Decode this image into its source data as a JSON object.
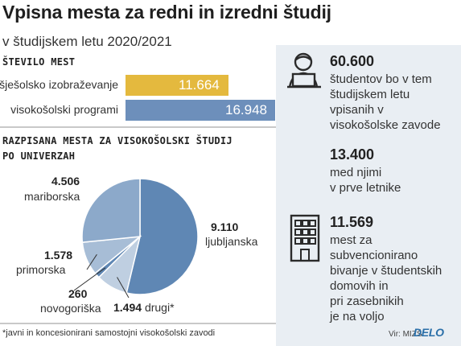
{
  "header": {
    "title": "Vpisna mesta za redni in izredni študij",
    "subtitle": "v študijskem letu 2020/2021"
  },
  "colors": {
    "bar_visjesolsko": "#e4b93e",
    "bar_visokosolski": "#6d8fbb",
    "pie_ljubljanska": "#5f87b4",
    "pie_mariborska": "#8ca9ca",
    "pie_primorska": "#a7bdd6",
    "pie_novogoriska": "#5f87b4",
    "pie_drugi": "#bfcfe1",
    "side_panel": "#e9eef3"
  },
  "chart_data": [
    {
      "type": "bar",
      "title": "ŠTEVILO MEST",
      "categories": [
        "višješolsko izobraževanje",
        "visokošolski programi"
      ],
      "values": [
        11664,
        16948
      ],
      "value_labels": [
        "11.664",
        "16.948"
      ],
      "xlim": [
        0,
        16948
      ]
    },
    {
      "type": "pie",
      "title": "RAZPISANA MESTA ZA VISOKOŠOLSKI ŠTUDIJ PO UNIVERZAH",
      "slices": [
        {
          "key": "ljubljanska",
          "value": 9110,
          "value_label": "9.110",
          "label": "ljubljanska"
        },
        {
          "key": "drugi",
          "value": 1494,
          "value_label": "1.494",
          "label": "drugi*"
        },
        {
          "key": "novogoriska",
          "value": 260,
          "value_label": "260",
          "label": "novogoriška"
        },
        {
          "key": "primorska",
          "value": 1578,
          "value_label": "1.578",
          "label": "primorska"
        },
        {
          "key": "mariborska",
          "value": 4506,
          "value_label": "4.506",
          "label": "mariborska"
        }
      ]
    }
  ],
  "side": {
    "students_icon": "student-at-laptop-icon",
    "building_icon": "dormitory-building-icon",
    "block1_number": "60.600",
    "block1_lines": [
      "študentov bo v tem",
      "študijskem letu",
      "vpisanih v",
      "visokošolske zavode"
    ],
    "block2_number": "13.400",
    "block2_lines": [
      "med njimi",
      "v prve letnike"
    ],
    "block3_number": "11.569",
    "block3_lines": [
      "mest za",
      "subvencionirano",
      "bivanje v študentskih",
      "domovih in",
      "pri zasebnikih",
      "je na voljo"
    ]
  },
  "footer": {
    "footnote": "*javni in koncesionirani samostojni visokošolski zavodi",
    "source": "Vir: MIZŠ",
    "brand": "DELO"
  }
}
